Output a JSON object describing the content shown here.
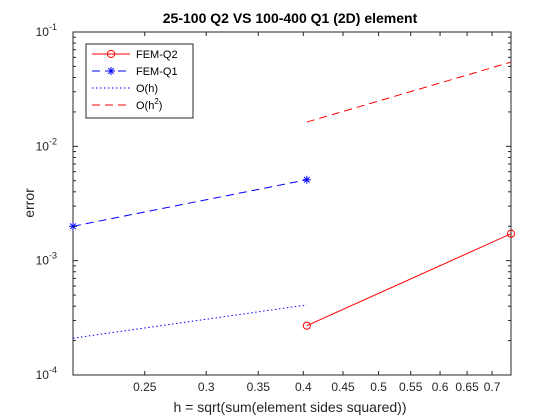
{
  "chart_data": {
    "type": "line",
    "title": "25-100 Q2 VS 100-400 Q1 (2D) element",
    "xlabel": "h = sqrt(sum(element sides squared))",
    "ylabel": "error",
    "xscale": "log",
    "yscale": "log",
    "xlim": [
      0.2021,
      0.7404
    ],
    "ylim": [
      0.0001,
      0.1
    ],
    "xticks": [
      0.25,
      0.3,
      0.35,
      0.4,
      0.45,
      0.5,
      0.55,
      0.6,
      0.65,
      0.7
    ],
    "xtick_labels": [
      "0.25",
      "0.3",
      "0.35",
      "0.4",
      "0.45",
      "0.5",
      "0.55",
      "0.6",
      "0.65",
      "0.7"
    ],
    "yticks": [
      0.0001,
      0.001,
      0.01,
      0.1
    ],
    "ytick_labels": [
      {
        "base": "10",
        "exp": "-4"
      },
      {
        "base": "10",
        "exp": "-3"
      },
      {
        "base": "10",
        "exp": "-2"
      },
      {
        "base": "10",
        "exp": "-1"
      }
    ],
    "grid": false,
    "legend": {
      "position": "top-left",
      "entries": [
        "FEM-Q2",
        "FEM-Q1",
        "O(h)",
        "O(h^2)"
      ]
    },
    "series": [
      {
        "name": "FEM-Q2",
        "x": [
          0.4042,
          0.7404
        ],
        "y": [
          0.00027,
          0.00172
        ],
        "color": "#ff0000",
        "line": "solid",
        "marker": "circle"
      },
      {
        "name": "FEM-Q1",
        "x": [
          0.2021,
          0.4042
        ],
        "y": [
          0.002,
          0.0051
        ],
        "color": "#0000ff",
        "line": "dashed",
        "marker": "star"
      },
      {
        "name": "O(h)",
        "x": [
          0.2021,
          0.4042
        ],
        "y": [
          0.00021,
          0.00041
        ],
        "color": "#0000ff",
        "line": "dotted",
        "marker": "none"
      },
      {
        "name": "O(h^2)",
        "x": [
          0.4042,
          0.7404
        ],
        "y": [
          0.0163,
          0.0545
        ],
        "color": "#ff0000",
        "line": "dashed",
        "marker": "none"
      }
    ]
  }
}
